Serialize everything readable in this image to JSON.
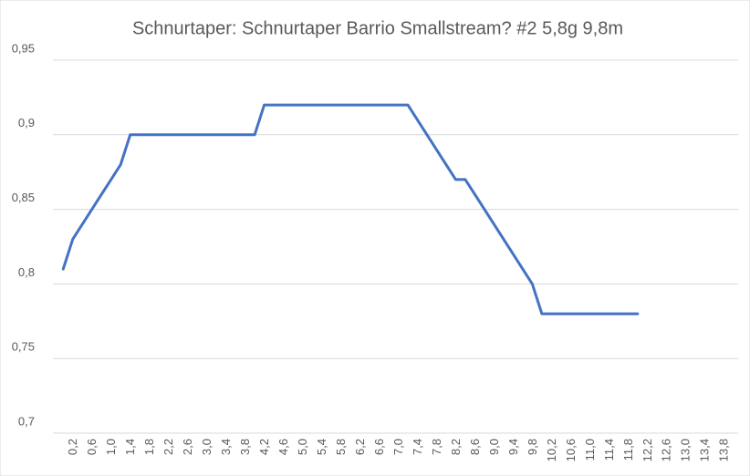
{
  "chart_data": {
    "type": "line",
    "title": "Schnurtaper: Schnurtaper Barrio Smallstream? #2 5,8g 9,8m",
    "categories": [
      null,
      "0,2",
      null,
      "0,6",
      null,
      "1,0",
      null,
      "1,4",
      null,
      "1,8",
      null,
      "2,2",
      null,
      "2,6",
      null,
      "3,0",
      null,
      "3,4",
      null,
      "3,8",
      null,
      "4,2",
      null,
      "4,6",
      null,
      "5,0",
      null,
      "5,4",
      null,
      "5,8",
      null,
      "6,2",
      null,
      "6,6",
      null,
      "7,0",
      null,
      "7,4",
      null,
      "7,8",
      null,
      "8,2",
      null,
      "8,6",
      null,
      "9,0",
      null,
      "9,4",
      null,
      "9,8",
      null,
      "10,2",
      null,
      "10,6",
      null,
      "11,0",
      null,
      "11,4",
      null,
      "11,8",
      null,
      "12,2",
      null,
      "12,6",
      null,
      "13,0",
      null,
      "13,4",
      null,
      "13,8",
      null
    ],
    "values": [
      0.81,
      0.83,
      0.84,
      0.85,
      0.86,
      0.87,
      0.88,
      0.9,
      0.9,
      0.9,
      0.9,
      0.9,
      0.9,
      0.9,
      0.9,
      0.9,
      0.9,
      0.9,
      0.9,
      0.9,
      0.9,
      0.92,
      0.92,
      0.92,
      0.92,
      0.92,
      0.92,
      0.92,
      0.92,
      0.92,
      0.92,
      0.92,
      0.92,
      0.92,
      0.92,
      0.92,
      0.92,
      0.91,
      0.9,
      0.89,
      0.88,
      0.87,
      0.87,
      0.86,
      0.85,
      0.84,
      0.83,
      0.82,
      0.81,
      0.8,
      0.78,
      0.78,
      0.78,
      0.78,
      0.78,
      0.78,
      0.78,
      0.78,
      0.78,
      0.78,
      0.78,
      null,
      null,
      null,
      null,
      null,
      null,
      null,
      null,
      null,
      null
    ],
    "color": "#4472c4",
    "ylim": [
      0.7,
      0.95
    ],
    "yticks": [
      {
        "value": 0.7,
        "label": "0,7"
      },
      {
        "value": 0.75,
        "label": "0,75"
      },
      {
        "value": 0.8,
        "label": "0,8"
      },
      {
        "value": 0.85,
        "label": "0,85"
      },
      {
        "value": 0.9,
        "label": "0,9"
      },
      {
        "value": 0.95,
        "label": "0,95"
      }
    ],
    "grid": true
  }
}
